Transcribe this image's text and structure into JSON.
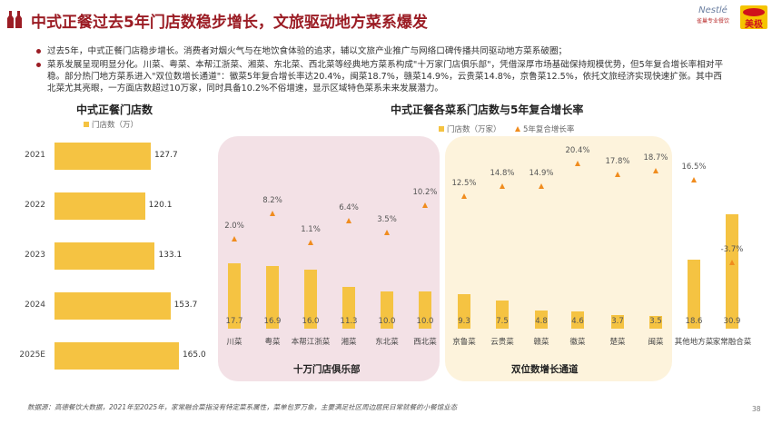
{
  "header": {
    "title": "中式正餐过去5年门店数稳步增长，文旅驱动地方菜系爆发",
    "logos": [
      "Nestlé 雀巢专业餐饮",
      "美极 Maggi"
    ]
  },
  "bullets": [
    "过去5年，中式正餐门店稳步增长。消费者对烟火气与在地饮食体验的追求，辅以文旅产业推广与网络口碑传播共同驱动地方菜系破圈；",
    "菜系发展呈现明显分化。川菜、粤菜、本帮江浙菜、湘菜、东北菜、西北菜等经典地方菜系构成\"十万家门店俱乐部\"，凭借深厚市场基础保持规模优势，但5年复合增长率相对平稳。部分热门地方菜系进入\"双位数增长通道\"：徽菜5年复合增长率达20.4%，闽菜18.7%，赣菜14.9%，云贵菜14.8%，京鲁菜12.5%，依托文旅经济实现快速扩张。其中西北菜尤其亮眼，一方面店数超过10万家，同时具备10.2%不俗增速，显示区域特色菜系未来发展潜力。"
  ],
  "chart_data": [
    {
      "type": "bar",
      "orientation": "horizontal",
      "title": "中式正餐门店数",
      "legend": [
        "门店数（万）"
      ],
      "categories": [
        "2021",
        "2022",
        "2023",
        "2024",
        "2025E"
      ],
      "values": [
        127.7,
        120.1,
        133.1,
        153.7,
        165.0
      ]
    },
    {
      "type": "bar",
      "title": "中式正餐各菜系门店数与5年复合增长率",
      "legend": [
        "门店数（万家）",
        "5年复合增长率"
      ],
      "categories": [
        "川菜",
        "粤菜",
        "本帮江浙菜",
        "湘菜",
        "东北菜",
        "西北菜",
        "京鲁菜",
        "云贵菜",
        "赣菜",
        "徽菜",
        "楚菜",
        "闽菜",
        "其他地方菜",
        "家常融合菜"
      ],
      "series": [
        {
          "name": "门店数（万家）",
          "type": "bar",
          "values": [
            17.7,
            16.9,
            16.0,
            11.3,
            10.0,
            10.0,
            9.3,
            7.5,
            4.8,
            4.6,
            3.7,
            3.5,
            18.6,
            30.9
          ]
        },
        {
          "name": "5年复合增长率",
          "type": "scatter",
          "unit": "%",
          "values": [
            2.0,
            8.2,
            1.1,
            6.4,
            3.5,
            10.2,
            12.5,
            14.8,
            14.9,
            20.4,
            17.8,
            18.7,
            16.5,
            -3.7
          ]
        }
      ],
      "groups": [
        {
          "label": "十万门店俱乐部",
          "color": "#f3e1e6"
        },
        {
          "label": "双位数增长通道",
          "color": "#fdf3dc"
        }
      ]
    }
  ],
  "footer": {
    "source": "数据源：高德餐饮大数据，2021年至2025年，家常融合菜指没有特定菜系属性，菜单包罗万象，主要满足社区周边居民日常就餐的小餐馆业态",
    "page": "38"
  }
}
